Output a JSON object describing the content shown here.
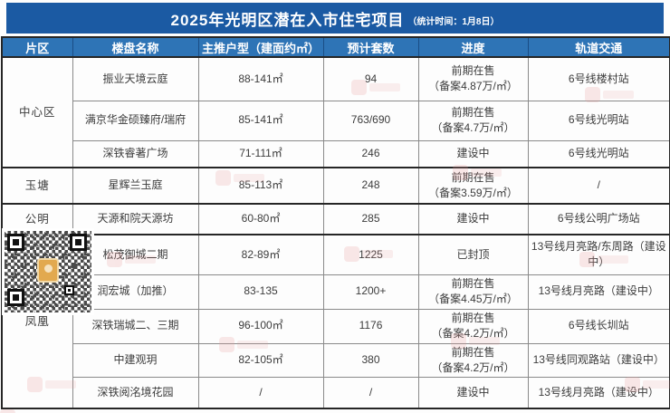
{
  "title": {
    "main": "2025年光明区潜在入市住宅项目",
    "note": "（统计时间：1月8日）"
  },
  "columns": [
    "片区",
    "楼盘名称",
    "主推户型（建面约㎡）",
    "预计套数",
    "进度",
    "轨道交通"
  ],
  "sections": [
    {
      "region": "中心区",
      "rows": [
        {
          "name": "振业天境云庭",
          "unit": "88-141㎡",
          "count": "94",
          "progress": "前期在售\n（备案4.87万/㎡）",
          "transit": "6号线楼村站"
        },
        {
          "name": "满京华金硕臻府/瑞府",
          "unit": "85-141㎡",
          "count": "763/690",
          "progress": "前期在售\n（备案4.7万/㎡）",
          "transit": "6号线光明站"
        },
        {
          "name": "深铁睿著广场",
          "unit": "71-111㎡",
          "count": "246",
          "progress": "建设中",
          "transit": "6号线光明站"
        }
      ]
    },
    {
      "region": "玉塘",
      "rows": [
        {
          "name": "星辉兰玉庭",
          "unit": "85-113㎡",
          "count": "248",
          "progress": "前期在售\n（备案3.59万/㎡）",
          "transit": "/"
        }
      ]
    },
    {
      "region": "公明",
      "rows": [
        {
          "name": "天源和院天源坊",
          "unit": "60-80㎡",
          "count": "285",
          "progress": "建设中",
          "transit": "6号线公明广场站"
        }
      ]
    },
    {
      "region": "凤凰",
      "rows": [
        {
          "name": "松茂御城二期",
          "unit": "82-89㎡",
          "count": "1225",
          "progress": "已封顶",
          "transit": "13号线月亮路/东周路（建设中）"
        },
        {
          "name": "润宏城（加推）",
          "unit": "83-135",
          "count": "1200+",
          "progress": "前期在售\n（备案4.45万/㎡）",
          "transit": "13号线月亮路（建设中）"
        },
        {
          "name": "深铁瑞城二、三期",
          "unit": "96-100㎡",
          "count": "1176",
          "progress": "前期在售\n（备案4.2万/㎡）",
          "transit": "6号线长圳站"
        },
        {
          "name": "中建观玥",
          "unit": "82-105㎡",
          "count": "380",
          "progress": "前期在售\n（备案4.2万/㎡）",
          "transit": "13号线同观路站（建设中）"
        },
        {
          "name": "深铁阅洺境花园",
          "unit": "/",
          "count": "/",
          "progress": "建设中",
          "transit": "13号线月亮路（建设中）"
        }
      ]
    }
  ],
  "colors": {
    "title_bar": "#1b5aa3",
    "header_bg": "#2e74b6",
    "watermark": "#e99a9a",
    "qr_logo": "#e2a94f"
  }
}
